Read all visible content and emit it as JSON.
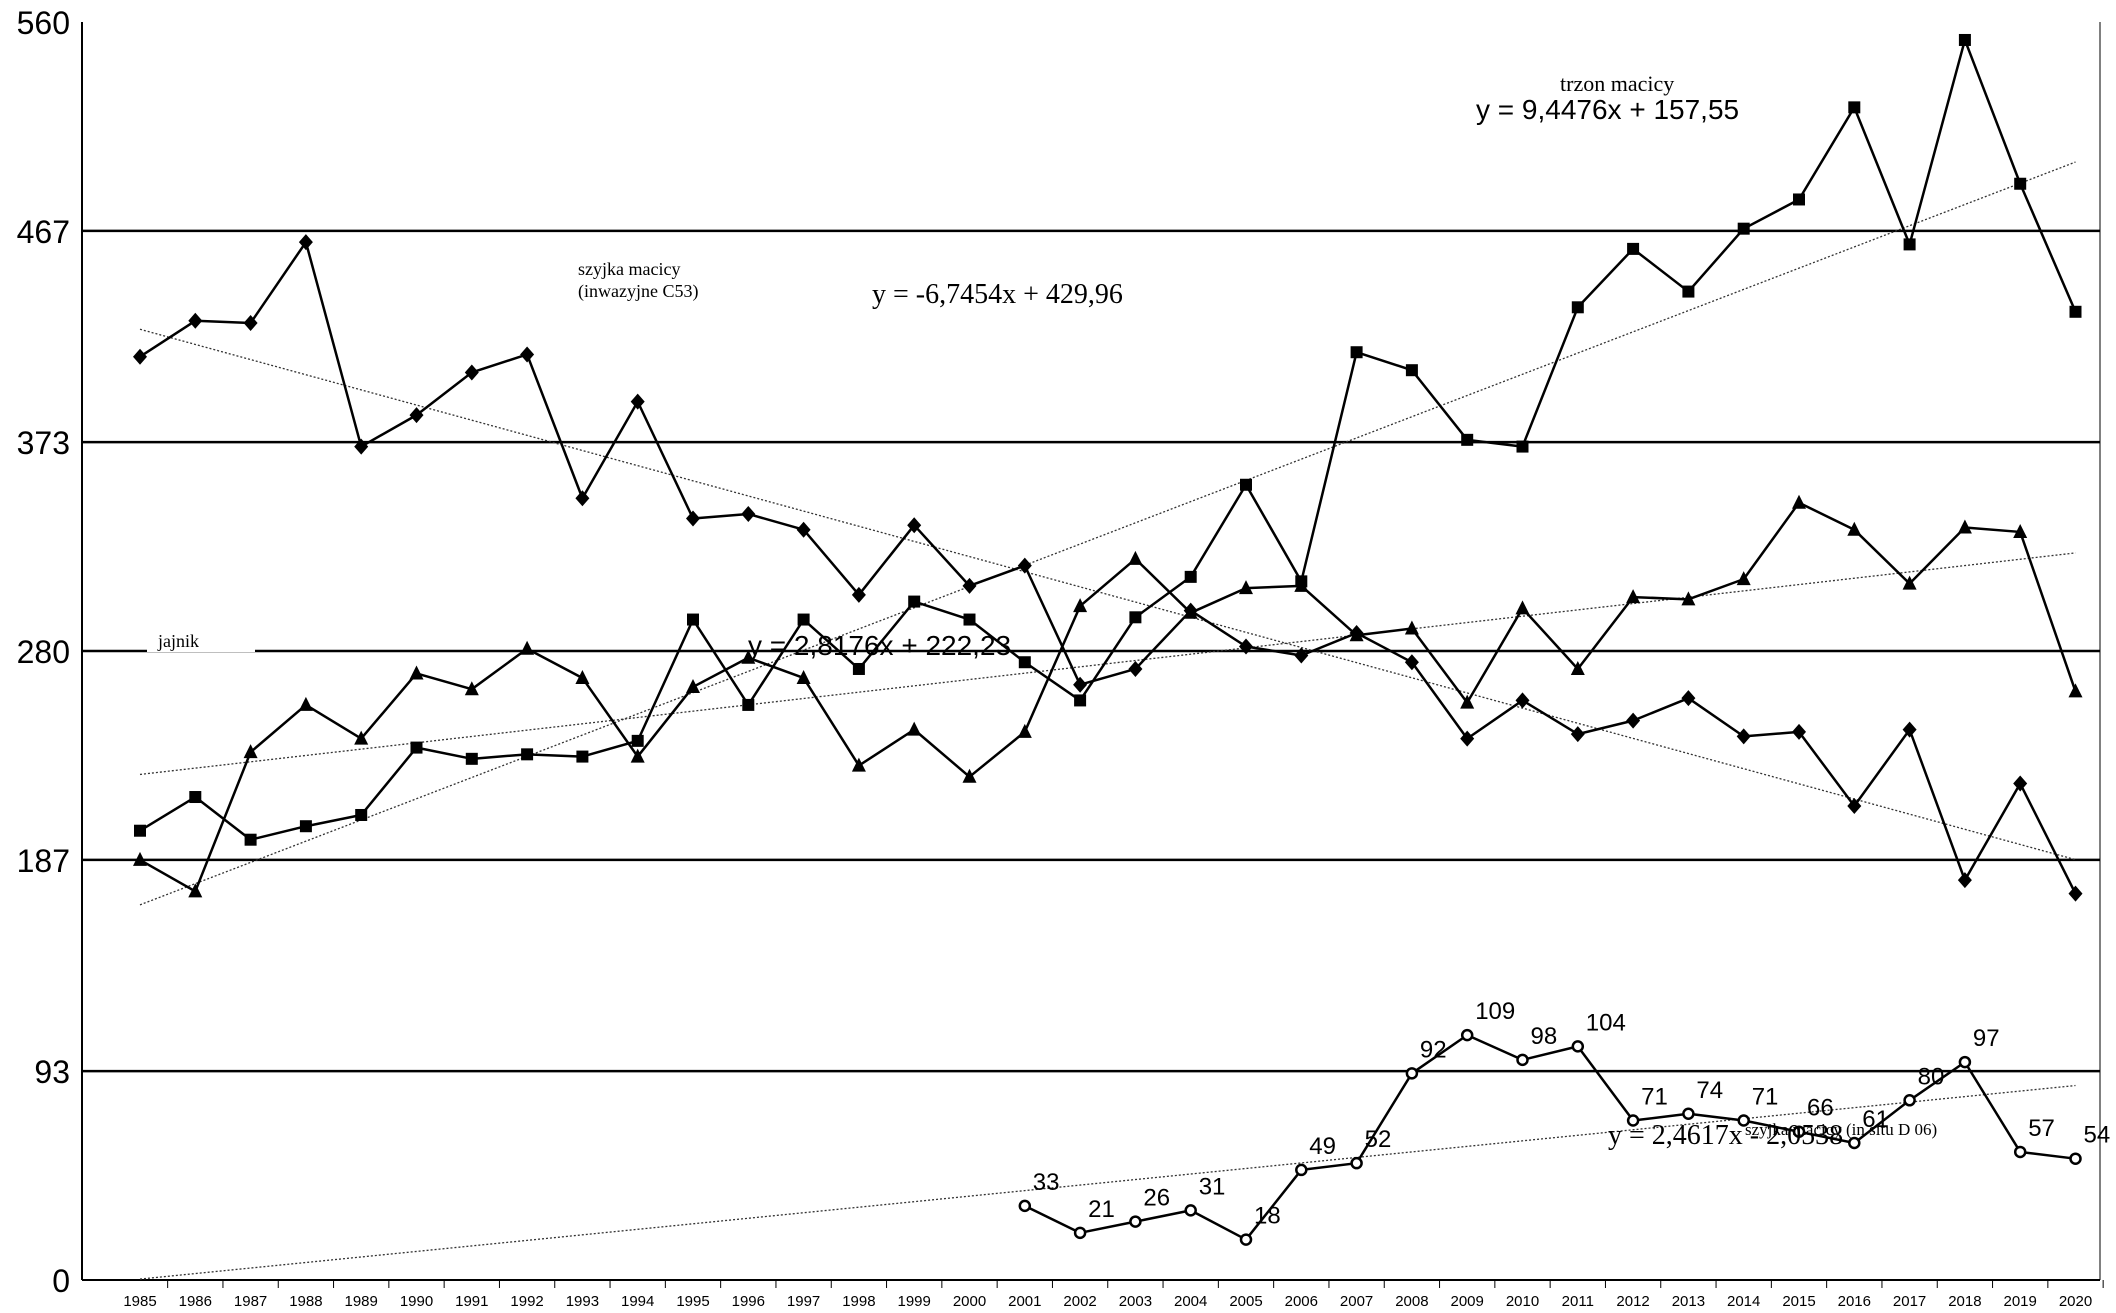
{
  "chart_data": {
    "type": "line",
    "ylim": [
      0,
      560
    ],
    "y_ticks": [
      0,
      93,
      187,
      280,
      373,
      467,
      560
    ],
    "x": [
      "1985",
      "1986",
      "1987",
      "1988",
      "1989",
      "1990",
      "1991",
      "1992",
      "1993",
      "1994",
      "1995",
      "1996",
      "1997",
      "1998",
      "1999",
      "2000",
      "2001",
      "2002",
      "2003",
      "2004",
      "2005",
      "2006",
      "2007",
      "2008",
      "2009",
      "2010",
      "2011",
      "2012",
      "2013",
      "2014",
      "2015",
      "2016",
      "2017",
      "2018",
      "2019",
      "2020"
    ],
    "grid": "horizontal lines at y ticks",
    "series": [
      {
        "name": "szyjka macicy (inwazyjne C53)",
        "marker": "diamond",
        "values": [
          411,
          427,
          426,
          462,
          371,
          385,
          404,
          412,
          348,
          391,
          339,
          341,
          334,
          305,
          336,
          309,
          318,
          265,
          272,
          298,
          282,
          278,
          288,
          275,
          241,
          258,
          243,
          249,
          259,
          242,
          244,
          211,
          245,
          178,
          221,
          172
        ],
        "trend": {
          "slope": -6.7454,
          "intercept": 429.96,
          "label": "y = -6,7454x + 429,96"
        }
      },
      {
        "name": "trzon macicy",
        "marker": "square",
        "values": [
          200,
          215,
          196,
          202,
          207,
          237,
          232,
          234,
          233,
          240,
          294,
          256,
          294,
          272,
          302,
          294,
          275,
          258,
          295,
          313,
          354,
          311,
          413,
          405,
          374,
          371,
          433,
          459,
          440,
          468,
          481,
          522,
          461,
          552,
          488,
          431
        ],
        "trend": {
          "slope": 9.4476,
          "intercept": 157.55,
          "label": "y = 9,4476x + 157,55"
        }
      },
      {
        "name": "jajnik",
        "marker": "triangle",
        "values": [
          187,
          173,
          235,
          256,
          241,
          270,
          263,
          281,
          268,
          233,
          264,
          277,
          268,
          229,
          245,
          224,
          244,
          300,
          321,
          297,
          308,
          309,
          287,
          290,
          257,
          299,
          272,
          304,
          303,
          312,
          346,
          334,
          310,
          335,
          333,
          262
        ],
        "trend": {
          "slope": 2.8176,
          "intercept": 222.23,
          "label": "y = 2,8176x + 222,23"
        }
      },
      {
        "name": "szyjka macicy (in situ D 06)",
        "marker": "circle",
        "values": [
          null,
          null,
          null,
          null,
          null,
          null,
          null,
          null,
          null,
          null,
          null,
          null,
          null,
          null,
          null,
          null,
          33,
          21,
          26,
          31,
          18,
          49,
          52,
          92,
          109,
          98,
          104,
          71,
          74,
          71,
          66,
          61,
          80,
          97,
          57,
          54
        ],
        "data_labels": [
          "33",
          "21",
          "26",
          "31",
          "18",
          "49",
          "52",
          "92",
          "109",
          "98",
          "104",
          "71",
          "74",
          "71",
          "66",
          "61",
          "80",
          "97",
          "57",
          "54"
        ],
        "trend": {
          "slope": 2.4617,
          "intercept": -2.0538,
          "label": "y = 2,4617x - 2,0538"
        }
      }
    ]
  },
  "annotations": {
    "trzon_name": "trzon macicy",
    "trzon_eq": "y = 9,4476x + 157,55",
    "szyjka_name_1": "szyjka macicy",
    "szyjka_name_2": "(inwazyjne C53)",
    "szyjka_eq": "y = -6,7454x + 429,96",
    "jajnik_name": "jajnik",
    "jajnik_eq": "y = 2,8176x + 222,23",
    "insitu_name": "szyjka macicy (in situ D 06)",
    "insitu_eq": "y = 2,4617x - 2,0538"
  }
}
